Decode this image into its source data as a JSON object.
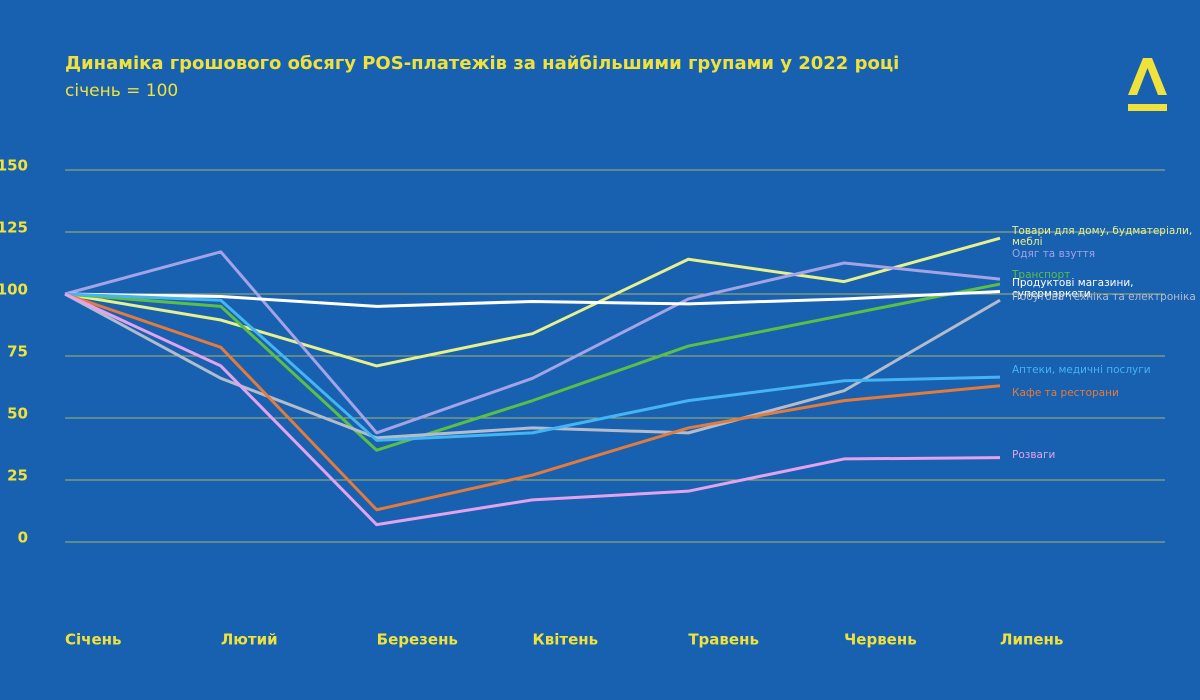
{
  "chart_data": {
    "type": "line",
    "title": "Динаміка грошового обсягу POS-платежів за найбільшими групами у 2022 році",
    "subtitle": "січень = 100",
    "categories": [
      "Січень",
      "Лютий",
      "Березень",
      "Квітень",
      "Травень",
      "Червень",
      "Липень"
    ],
    "series": [
      {
        "name": "Товари для дому, будматеріали, меблі",
        "color": "#e6f08c",
        "values": [
          100,
          89.5,
          71,
          84,
          114,
          105,
          122.5
        ]
      },
      {
        "name": "Одяг та взуття",
        "color": "#a3a3e6",
        "values": [
          100,
          117,
          44,
          66,
          98,
          112.5,
          106
        ]
      },
      {
        "name": "Транспорт",
        "color": "#5cbf45",
        "values": [
          100,
          95,
          37,
          57,
          79,
          91.5,
          104
        ]
      },
      {
        "name": "Продуктові магазини, супермаркети",
        "color": "#ffffff",
        "values": [
          100,
          99,
          95,
          97,
          96,
          98,
          101
        ]
      },
      {
        "name": "Побутова техніка та електроніка",
        "color": "#b4bccb",
        "values": [
          100,
          66,
          42,
          46,
          44,
          61,
          97.5
        ]
      },
      {
        "name": "Аптеки, медичні послуги",
        "color": "#45b4f2",
        "values": [
          100,
          97.5,
          41,
          44,
          57,
          65,
          66.5
        ]
      },
      {
        "name": "Кафе та ресторани",
        "color": "#e27b3c",
        "values": [
          100,
          78.5,
          13,
          27,
          46,
          57,
          63
        ]
      },
      {
        "name": "Розваги",
        "color": "#e2a3ec",
        "values": [
          100,
          71,
          7,
          17,
          20.5,
          33.5,
          34
        ]
      }
    ],
    "ylim": [
      0,
      150
    ],
    "yticks": [
      0,
      25,
      50,
      75,
      100,
      125,
      150
    ],
    "grid": true
  }
}
